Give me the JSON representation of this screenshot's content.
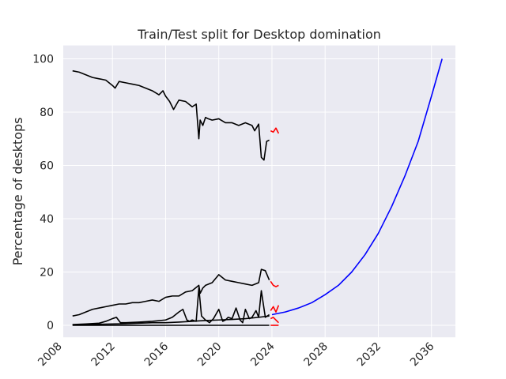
{
  "chart_data": {
    "type": "line",
    "title": "Train/Test split for Desktop domination",
    "xlabel": "",
    "ylabel": "Percentage of desktops",
    "xlim": [
      2008.3,
      2037.8
    ],
    "ylim": [
      -4.5,
      105
    ],
    "grid": true,
    "x_ticks": [
      "2008",
      "2012",
      "2016",
      "2020",
      "2024",
      "2028",
      "2032",
      "2036"
    ],
    "x_tick_values": [
      2008,
      2012,
      2016,
      2020,
      2024,
      2028,
      2032,
      2036
    ],
    "y_ticks": [
      "0",
      "20",
      "40",
      "60",
      "80",
      "100"
    ],
    "y_tick_values": [
      0,
      20,
      40,
      60,
      80,
      100
    ],
    "colors": {
      "train": "#000000",
      "test": "#ff0000",
      "forecast": "#0000ff",
      "background": "#eaeaf2",
      "grid": "#ffffff"
    },
    "series": [
      {
        "role": "train",
        "x": [
          2009.0,
          2009.5,
          2010.0,
          2010.5,
          2011.0,
          2011.5,
          2012.0,
          2012.2,
          2012.5,
          2013.0,
          2013.5,
          2014.0,
          2014.5,
          2015.0,
          2015.5,
          2015.8,
          2016.0,
          2016.3,
          2016.6,
          2017.0,
          2017.5,
          2018.0,
          2018.3,
          2018.5,
          2018.6,
          2018.8,
          2019.0,
          2019.2,
          2019.5,
          2020.0,
          2020.5,
          2021.0,
          2021.5,
          2022.0,
          2022.5,
          2022.7,
          2023.0,
          2023.2,
          2023.4,
          2023.6,
          2023.8
        ],
        "values": [
          95.5,
          95.0,
          94.0,
          93.0,
          92.5,
          92.0,
          90.0,
          89.0,
          91.5,
          91.0,
          90.5,
          90.0,
          89.0,
          88.0,
          86.5,
          88.0,
          86.0,
          84.0,
          81.0,
          84.5,
          84.0,
          82.0,
          83.0,
          70.0,
          77.0,
          75.0,
          78.0,
          77.5,
          77.0,
          77.5,
          76.0,
          76.0,
          75.0,
          76.0,
          75.0,
          73.0,
          75.5,
          63.0,
          62.0,
          69.0,
          69.5
        ]
      },
      {
        "role": "train",
        "x": [
          2009.0,
          2009.5,
          2010.0,
          2010.5,
          2011.0,
          2011.5,
          2012.0,
          2012.5,
          2013.0,
          2013.5,
          2014.0,
          2014.5,
          2015.0,
          2015.5,
          2016.0,
          2016.5,
          2017.0,
          2017.5,
          2018.0,
          2018.5,
          2018.6,
          2018.8,
          2019.0,
          2019.5,
          2020.0,
          2020.5,
          2021.0,
          2021.5,
          2022.0,
          2022.5,
          2023.0,
          2023.2,
          2023.5,
          2023.8
        ],
        "values": [
          3.5,
          4.0,
          5.0,
          6.0,
          6.5,
          7.0,
          7.5,
          8.0,
          8.0,
          8.5,
          8.5,
          9.0,
          9.5,
          9.0,
          10.5,
          11.0,
          11.0,
          12.5,
          13.0,
          15.0,
          12.0,
          14.0,
          15.0,
          16.0,
          19.0,
          17.0,
          16.5,
          16.0,
          15.5,
          15.0,
          16.0,
          21.0,
          20.5,
          17.0
        ]
      },
      {
        "role": "train",
        "x": [
          2009.0,
          2010.0,
          2011.0,
          2011.5,
          2012.0,
          2012.3,
          2012.6,
          2013.0,
          2014.0,
          2015.0,
          2016.0,
          2016.5,
          2017.0,
          2017.3,
          2017.6,
          2017.8,
          2018.0,
          2018.3,
          2018.5,
          2018.7,
          2019.0,
          2019.3,
          2019.6,
          2020.0,
          2020.3,
          2020.5,
          2020.7,
          2021.0,
          2021.3,
          2021.6,
          2021.8,
          2022.0,
          2022.3,
          2022.5,
          2022.8,
          2023.0,
          2023.2,
          2023.5,
          2023.8
        ],
        "values": [
          0.3,
          0.5,
          0.8,
          1.5,
          2.5,
          3.0,
          1.0,
          1.0,
          1.2,
          1.5,
          2.0,
          3.0,
          5.0,
          6.0,
          2.0,
          1.5,
          2.0,
          1.5,
          14.0,
          3.5,
          2.0,
          1.0,
          2.5,
          6.0,
          1.5,
          2.0,
          3.0,
          2.5,
          6.5,
          2.0,
          1.0,
          6.0,
          2.5,
          3.0,
          5.5,
          3.0,
          13.0,
          3.0,
          4.0
        ]
      },
      {
        "role": "train",
        "x": [
          2009.0,
          2010.0,
          2011.0,
          2012.0,
          2013.0,
          2014.0,
          2015.0,
          2016.0,
          2017.0,
          2018.0,
          2019.0,
          2020.0,
          2021.0,
          2022.0,
          2023.0,
          2023.8
        ],
        "values": [
          0.2,
          0.3,
          0.4,
          0.5,
          0.6,
          0.8,
          1.0,
          1.0,
          1.2,
          1.5,
          1.8,
          2.0,
          2.2,
          2.5,
          3.0,
          3.5
        ]
      },
      {
        "role": "train",
        "x": [
          2009.0,
          2012.0,
          2016.0,
          2020.0,
          2023.8
        ],
        "values": [
          0.0,
          0.0,
          0.0,
          0.0,
          0.0
        ]
      },
      {
        "role": "test",
        "x": [
          2023.9,
          2024.1,
          2024.3,
          2024.5
        ],
        "values": [
          73.0,
          72.5,
          74.0,
          72.0
        ]
      },
      {
        "role": "test",
        "x": [
          2023.9,
          2024.1,
          2024.3,
          2024.5
        ],
        "values": [
          16.5,
          15.0,
          14.5,
          15.0
        ]
      },
      {
        "role": "test",
        "x": [
          2023.9,
          2024.1,
          2024.3,
          2024.5
        ],
        "values": [
          5.5,
          7.0,
          5.0,
          7.5
        ]
      },
      {
        "role": "test",
        "x": [
          2023.9,
          2024.1,
          2024.3,
          2024.5
        ],
        "values": [
          2.5,
          3.0,
          2.0,
          1.0
        ]
      },
      {
        "role": "test",
        "x": [
          2023.9,
          2024.1,
          2024.3,
          2024.5
        ],
        "values": [
          0.0,
          0.0,
          0.0,
          0.0
        ]
      },
      {
        "role": "forecast",
        "x": [
          2024.0,
          2025.0,
          2026.0,
          2027.0,
          2028.0,
          2029.0,
          2030.0,
          2031.0,
          2032.0,
          2033.0,
          2034.0,
          2035.0,
          2036.0,
          2036.8
        ],
        "values": [
          4.0,
          5.0,
          6.5,
          8.5,
          11.5,
          15.0,
          20.0,
          26.5,
          34.5,
          44.5,
          56.0,
          69.0,
          86.0,
          100.0
        ]
      }
    ]
  }
}
